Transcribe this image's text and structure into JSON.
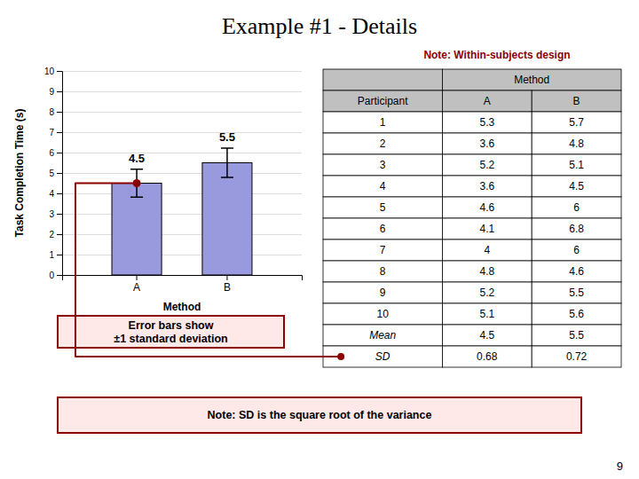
{
  "chart_data": {
    "type": "bar",
    "title": "Example #1 - Details",
    "categories": [
      "A",
      "B"
    ],
    "values": [
      4.5,
      5.5
    ],
    "errors": [
      0.68,
      0.72
    ],
    "color": "#9999dd",
    "xlabel": "Method",
    "ylabel": "Task Completion Time (s)",
    "ylim": [
      0,
      10
    ],
    "yticks": [
      0,
      1,
      2,
      3,
      4,
      5,
      6,
      7,
      8,
      9,
      10
    ],
    "grid": true,
    "data_labels": true,
    "annotations": [
      "Note: Within-subjects design",
      "Error bars show\n±1 standard deviation",
      "Note: SD is the square root of the variance",
      "9"
    ],
    "table": {
      "header": "Method",
      "columns": [
        "Participant",
        "A",
        "B"
      ],
      "rows": [
        [
          1,
          5.3,
          5.7
        ],
        [
          2,
          3.6,
          4.8
        ],
        [
          3,
          5.2,
          5.1
        ],
        [
          4,
          3.6,
          4.5
        ],
        [
          5,
          4.6,
          6.0
        ],
        [
          6,
          4.1,
          6.8
        ],
        [
          7,
          4.0,
          6.0
        ],
        [
          8,
          4.8,
          4.6
        ],
        [
          9,
          5.2,
          5.5
        ],
        [
          10,
          5.1,
          5.6
        ],
        [
          "Mean",
          4.5,
          5.5
        ],
        [
          "SD",
          0.68,
          0.72
        ]
      ]
    }
  }
}
